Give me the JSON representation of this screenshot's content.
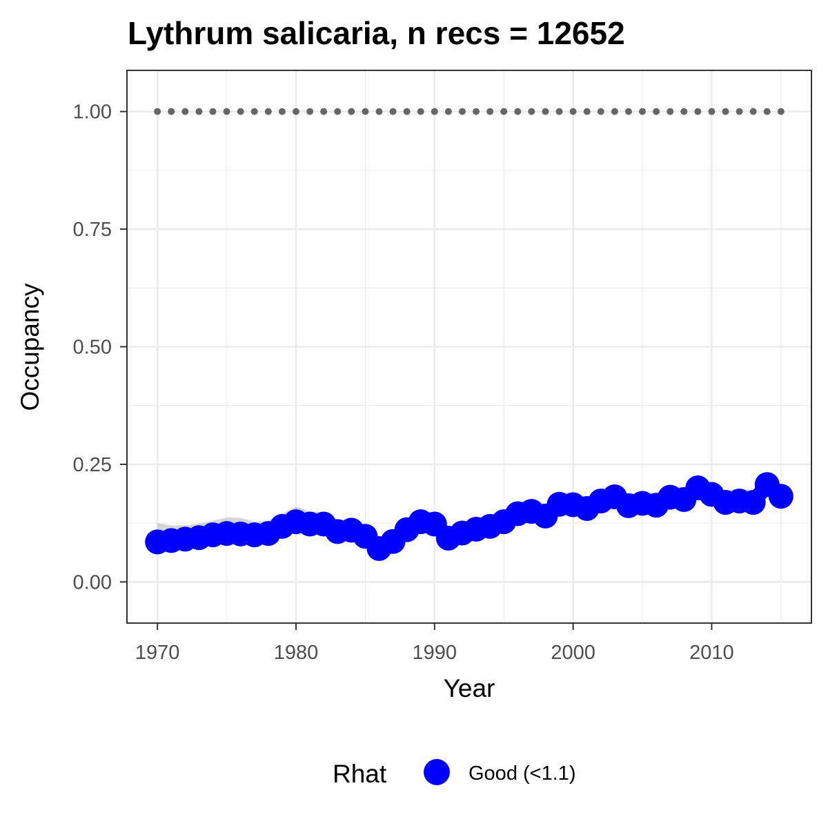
{
  "chart_data": {
    "type": "line",
    "title": "Lythrum salicaria, n recs = 12652",
    "xlabel": "Year",
    "ylabel": "Occupancy",
    "xlim": [
      1967.8,
      1917.2
    ],
    "ylim": [
      -0.0875,
      1.0875
    ],
    "x_ticks": [
      1970,
      1980,
      1990,
      2000,
      2010
    ],
    "x_tick_labels": [
      "1970",
      "1980",
      "1990",
      "2000",
      "2010"
    ],
    "y_ticks": [
      0,
      0.25,
      0.5,
      0.75,
      1
    ],
    "y_tick_labels": [
      "0.00",
      "0.25",
      "0.50",
      "0.75",
      "1.00"
    ],
    "grid": true,
    "legend": {
      "position": "bottom",
      "title": "Rhat",
      "entries": [
        {
          "label": "Good (<1.1)",
          "color": "#0000ff"
        }
      ]
    },
    "colors": {
      "points": "#0000ff",
      "ribbon": "#b3b3b3",
      "reference": "#666666",
      "grid": "#ebebeb",
      "panel_border": "#333333"
    },
    "series": [
      {
        "name": "Good (<1.1)",
        "x": [
          1970,
          1971,
          1972,
          1973,
          1974,
          1975,
          1976,
          1977,
          1978,
          1979,
          1980,
          1981,
          1982,
          1983,
          1984,
          1985,
          1986,
          1987,
          1988,
          1989,
          1990,
          1991,
          1992,
          1993,
          1994,
          1995,
          1996,
          1997,
          1998,
          1999,
          2000,
          2001,
          2002,
          2003,
          2004,
          2005,
          2006,
          2007,
          2008,
          2009,
          2010,
          2011,
          2012,
          2013,
          2014,
          2015
        ],
        "y": [
          0.085,
          0.088,
          0.091,
          0.094,
          0.1,
          0.103,
          0.102,
          0.1,
          0.103,
          0.118,
          0.128,
          0.123,
          0.123,
          0.107,
          0.11,
          0.097,
          0.071,
          0.086,
          0.111,
          0.128,
          0.123,
          0.093,
          0.104,
          0.112,
          0.118,
          0.128,
          0.145,
          0.15,
          0.14,
          0.165,
          0.164,
          0.156,
          0.172,
          0.181,
          0.162,
          0.167,
          0.163,
          0.18,
          0.175,
          0.2,
          0.186,
          0.169,
          0.172,
          0.169,
          0.207,
          0.182
        ],
        "lower": [
          0.06,
          0.065,
          0.07,
          0.075,
          0.08,
          0.082,
          0.081,
          0.079,
          0.082,
          0.097,
          0.105,
          0.101,
          0.101,
          0.086,
          0.089,
          0.077,
          0.052,
          0.066,
          0.09,
          0.106,
          0.101,
          0.073,
          0.083,
          0.091,
          0.097,
          0.106,
          0.122,
          0.127,
          0.118,
          0.142,
          0.141,
          0.133,
          0.149,
          0.157,
          0.139,
          0.144,
          0.14,
          0.157,
          0.152,
          0.176,
          0.163,
          0.146,
          0.149,
          0.146,
          0.183,
          0.159
        ],
        "upper": [
          0.125,
          0.12,
          0.12,
          0.124,
          0.13,
          0.137,
          0.136,
          0.128,
          0.13,
          0.145,
          0.16,
          0.15,
          0.148,
          0.131,
          0.134,
          0.12,
          0.093,
          0.109,
          0.135,
          0.152,
          0.147,
          0.116,
          0.127,
          0.135,
          0.142,
          0.153,
          0.17,
          0.175,
          0.165,
          0.19,
          0.19,
          0.181,
          0.198,
          0.207,
          0.187,
          0.192,
          0.189,
          0.206,
          0.201,
          0.226,
          0.212,
          0.195,
          0.198,
          0.195,
          0.233,
          0.208
        ]
      },
      {
        "name": "reference",
        "x": [
          1970,
          1971,
          1972,
          1973,
          1974,
          1975,
          1976,
          1977,
          1978,
          1979,
          1980,
          1981,
          1982,
          1983,
          1984,
          1985,
          1986,
          1987,
          1988,
          1989,
          1990,
          1991,
          1992,
          1993,
          1994,
          1995,
          1996,
          1997,
          1998,
          1999,
          2000,
          2001,
          2002,
          2003,
          2004,
          2005,
          2006,
          2007,
          2008,
          2009,
          2010,
          2011,
          2012,
          2013,
          2014,
          2015
        ],
        "y": [
          1,
          1,
          1,
          1,
          1,
          1,
          1,
          1,
          1,
          1,
          1,
          1,
          1,
          1,
          1,
          1,
          1,
          1,
          1,
          1,
          1,
          1,
          1,
          1,
          1,
          1,
          1,
          1,
          1,
          1,
          1,
          1,
          1,
          1,
          1,
          1,
          1,
          1,
          1,
          1,
          1,
          1,
          1,
          1,
          1,
          1
        ]
      }
    ]
  }
}
